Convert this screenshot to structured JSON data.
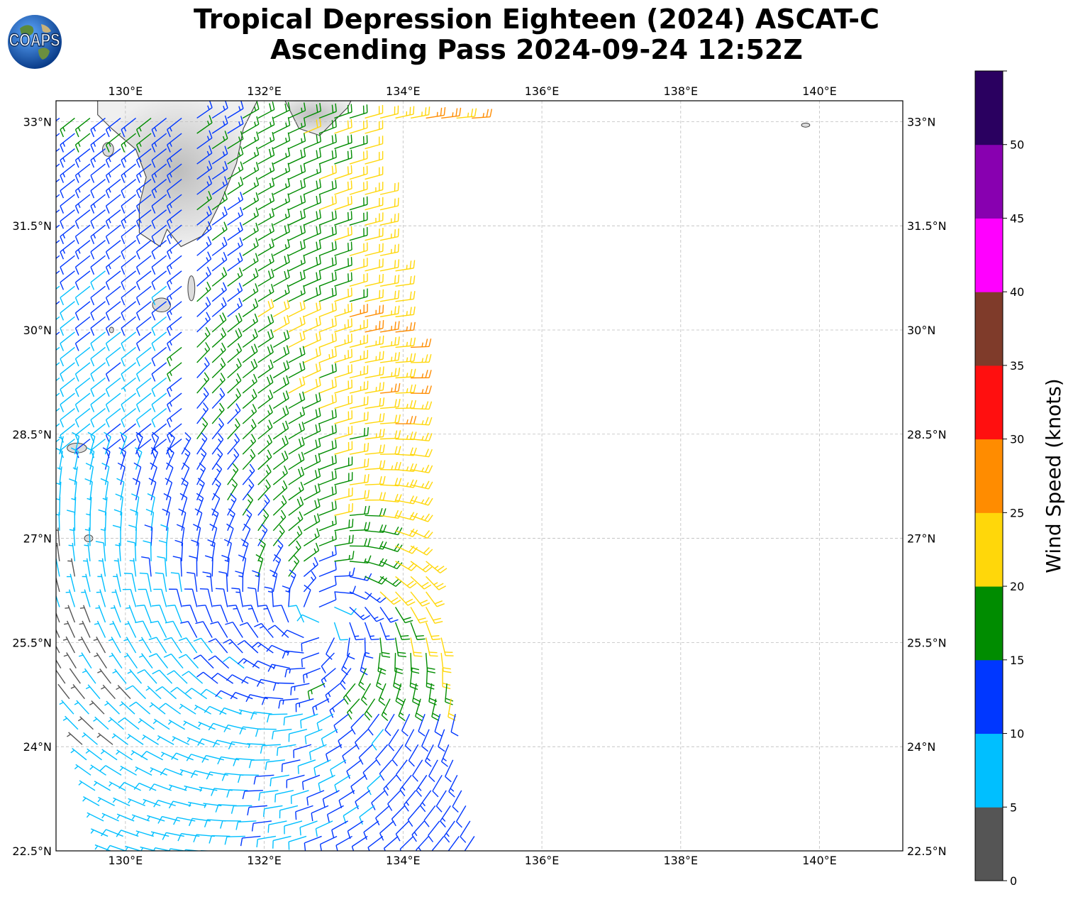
{
  "title": {
    "line1": "Tropical Depression Eighteen (2024) ASCAT-C",
    "line2": "Ascending Pass 2024-09-24 12:52Z"
  },
  "logo": {
    "text": "COAPS",
    "icon": "globe-icon"
  },
  "map": {
    "lon_range": [
      129.0,
      141.2
    ],
    "lat_range": [
      22.5,
      33.3
    ],
    "lon_ticks": [
      {
        "value": 130,
        "label": "130°E"
      },
      {
        "value": 132,
        "label": "132°E"
      },
      {
        "value": 134,
        "label": "134°E"
      },
      {
        "value": 136,
        "label": "136°E"
      },
      {
        "value": 138,
        "label": "138°E"
      },
      {
        "value": 140,
        "label": "140°E"
      }
    ],
    "lat_ticks": [
      {
        "value": 33,
        "label": "33°N"
      },
      {
        "value": 31.5,
        "label": "31.5°N"
      },
      {
        "value": 30,
        "label": "30°N"
      },
      {
        "value": 28.5,
        "label": "28.5°N"
      },
      {
        "value": 27,
        "label": "27°N"
      },
      {
        "value": 25.5,
        "label": "25.5°N"
      },
      {
        "value": 24,
        "label": "24°N"
      },
      {
        "value": 22.5,
        "label": "22.5°N"
      }
    ],
    "gridlines": true,
    "storm_center": {
      "lon": 132.8,
      "lat": 25.8
    }
  },
  "colorbar": {
    "label": "Wind Speed (knots)",
    "bins": [
      {
        "min": 0,
        "max": 5,
        "color": "#555555"
      },
      {
        "min": 5,
        "max": 10,
        "color": "#00bfff"
      },
      {
        "min": 10,
        "max": 15,
        "color": "#0037ff"
      },
      {
        "min": 15,
        "max": 20,
        "color": "#008c00"
      },
      {
        "min": 20,
        "max": 25,
        "color": "#ffd70a"
      },
      {
        "min": 25,
        "max": 30,
        "color": "#ff8c00"
      },
      {
        "min": 30,
        "max": 35,
        "color": "#ff0f0f"
      },
      {
        "min": 35,
        "max": 40,
        "color": "#7f3b2a"
      },
      {
        "min": 40,
        "max": 45,
        "color": "#ff00ff"
      },
      {
        "min": 45,
        "max": 50,
        "color": "#8800b0"
      },
      {
        "min": 50,
        "max": 55,
        "color": "#2a0060"
      }
    ],
    "tick_labels": [
      "0",
      "5",
      "10",
      "15",
      "20",
      "25",
      "30",
      "35",
      "40",
      "45",
      "50"
    ]
  },
  "swath": {
    "west_edge": [
      [
        129.0,
        33.1
      ],
      [
        129.0,
        22.5
      ]
    ],
    "east_edge": [
      [
        133.5,
        33.0
      ],
      [
        134.3,
        28.8
      ],
      [
        134.3,
        27.0
      ],
      [
        134.6,
        25.4
      ],
      [
        135.1,
        22.5
      ]
    ]
  }
}
